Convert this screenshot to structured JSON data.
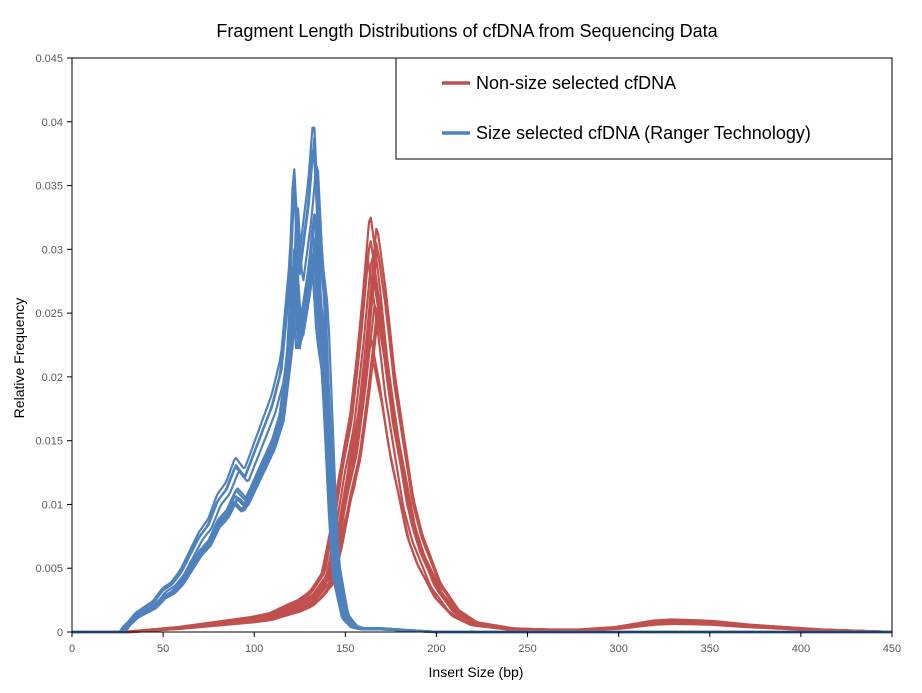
{
  "chart_data": {
    "type": "line",
    "title": "Fragment Length Distributions of cfDNA from Sequencing Data",
    "xlabel": "Insert Size (bp)",
    "ylabel": "Relative Frequency",
    "xlim": [
      0,
      450
    ],
    "ylim": [
      0,
      0.045
    ],
    "x_ticks": [
      0,
      50,
      100,
      150,
      200,
      250,
      300,
      350,
      400,
      450
    ],
    "y_ticks": [
      0,
      0.005,
      0.01,
      0.015,
      0.02,
      0.025,
      0.03,
      0.035,
      0.04,
      0.045
    ],
    "y_tick_labels": [
      "0",
      "0.005",
      "0.01",
      "0.015",
      "0.02",
      "0.025",
      "0.03",
      "0.035",
      "0.04",
      "0.045"
    ],
    "grid": false,
    "legend_position": "top-right",
    "series": [
      {
        "name": "Non-size selected cfDNA",
        "color": "#c0504d",
        "approx_peak": {
          "x": 165,
          "y": 0.0335
        },
        "secondary_mode": {
          "x": 330,
          "y": 0.001
        },
        "envelope_x": [
          0,
          30,
          60,
          80,
          100,
          110,
          120,
          125,
          130,
          133,
          140,
          145,
          150,
          155,
          160,
          165,
          170,
          175,
          180,
          185,
          190,
          200,
          210,
          220,
          240,
          260,
          280,
          300,
          320,
          330,
          350,
          370,
          390,
          410,
          430,
          450
        ],
        "envelope_y": [
          0,
          0,
          0.0004,
          0.0008,
          0.0012,
          0.0015,
          0.0022,
          0.0025,
          0.003,
          0.0034,
          0.005,
          0.009,
          0.014,
          0.018,
          0.025,
          0.0335,
          0.028,
          0.021,
          0.016,
          0.011,
          0.008,
          0.004,
          0.0018,
          0.0008,
          0.0003,
          0.0002,
          0.0002,
          0.0004,
          0.0009,
          0.001,
          0.0009,
          0.0006,
          0.0004,
          0.0002,
          0.0001,
          0
        ]
      },
      {
        "name": "Size selected cfDNA (Ranger Technology)",
        "color": "#4f81bd",
        "approx_peak": {
          "x": 133,
          "y": 0.0415
        },
        "envelope_x": [
          0,
          28,
          30,
          35,
          40,
          45,
          50,
          55,
          60,
          65,
          70,
          75,
          80,
          85,
          90,
          95,
          100,
          105,
          110,
          115,
          120,
          122,
          125,
          130,
          133,
          136,
          139,
          141,
          143,
          145,
          150,
          155,
          160,
          170,
          180,
          190,
          200,
          450
        ],
        "envelope_y": [
          0,
          0,
          0.0006,
          0.0015,
          0.002,
          0.0025,
          0.0035,
          0.004,
          0.005,
          0.0065,
          0.008,
          0.009,
          0.011,
          0.012,
          0.014,
          0.013,
          0.015,
          0.017,
          0.019,
          0.022,
          0.03,
          0.038,
          0.03,
          0.036,
          0.0415,
          0.032,
          0.028,
          0.02,
          0.012,
          0.006,
          0.0015,
          0.0005,
          0.0003,
          0.0003,
          0.0002,
          0.0001,
          0,
          0
        ]
      }
    ]
  }
}
